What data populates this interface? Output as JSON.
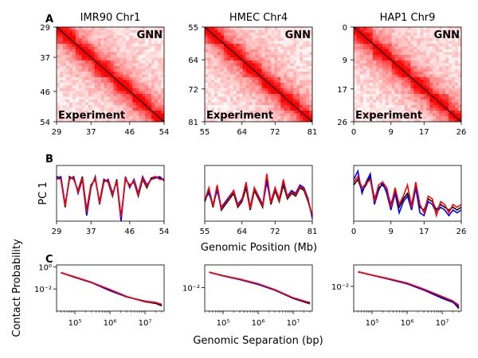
{
  "figure": {
    "panel_letters": [
      "A",
      "B",
      "C"
    ],
    "contact_ylabel": "Contact Probability",
    "contact_xlabel": "Genomic Separation (bp)"
  },
  "chart_data": [
    {
      "type": "heatmap",
      "panel": "A",
      "title": "IMR90 Chr1",
      "upper_label": "GNN",
      "lower_label": "Experiment",
      "ticks": [
        "29",
        "37",
        "46",
        "54"
      ],
      "range": [
        29,
        54
      ],
      "color_scale": [
        "#ffffff",
        "#ff0000"
      ],
      "diagonal_color": "#000000"
    },
    {
      "type": "heatmap",
      "panel": "A",
      "title": "HMEC Chr4",
      "upper_label": "GNN",
      "lower_label": "Experiment",
      "ticks": [
        "55",
        "64",
        "72",
        "81"
      ],
      "range": [
        55,
        81
      ],
      "color_scale": [
        "#ffffff",
        "#ff0000"
      ],
      "diagonal_color": "#000000"
    },
    {
      "type": "heatmap",
      "panel": "A",
      "title": "HAP1 Chr9",
      "upper_label": "GNN",
      "lower_label": "Experiment",
      "ticks": [
        "0",
        "9",
        "17",
        "26"
      ],
      "range": [
        0,
        26
      ],
      "color_scale": [
        "#ffffff",
        "#ff0000"
      ],
      "diagonal_color": "#000000"
    },
    {
      "type": "line",
      "panel": "B",
      "ylabel": "PC 1",
      "xlabel": "Genomic Position (Mb)",
      "xticks": [
        "29",
        "37",
        "46",
        "54"
      ],
      "xlim": [
        29,
        54
      ],
      "ylim": [
        -1,
        1
      ],
      "series": [
        {
          "color": "#000000",
          "x": [
            29,
            30,
            31,
            32,
            33,
            34,
            35,
            36,
            37,
            38,
            39,
            40,
            41,
            42,
            43,
            44,
            45,
            46,
            47,
            48,
            49,
            50,
            51,
            52,
            53,
            54
          ],
          "values": [
            0.6,
            0.55,
            -0.5,
            0.6,
            0.5,
            0.1,
            0.6,
            -0.6,
            0.3,
            0.5,
            -0.3,
            0.5,
            0.4,
            -0.1,
            0.5,
            -0.9,
            0.5,
            0.3,
            0.4,
            -0.1,
            0.5,
            0.2,
            0.55,
            0.6,
            0.55,
            0.5
          ]
        },
        {
          "color": "#0000ff",
          "x": [
            29,
            30,
            31,
            32,
            33,
            34,
            35,
            36,
            37,
            38,
            39,
            40,
            41,
            42,
            43,
            44,
            45,
            46,
            47,
            48,
            49,
            50,
            51,
            52,
            53,
            54
          ],
          "values": [
            0.5,
            0.6,
            -0.4,
            0.5,
            0.6,
            0.0,
            0.5,
            -0.8,
            0.2,
            0.6,
            -0.4,
            0.4,
            0.5,
            0.0,
            0.4,
            -1.0,
            0.6,
            0.2,
            0.5,
            0.0,
            0.6,
            0.3,
            0.5,
            0.55,
            0.6,
            0.45
          ]
        },
        {
          "color": "#ff0000",
          "x": [
            29,
            30,
            31,
            32,
            33,
            34,
            35,
            36,
            37,
            38,
            39,
            40,
            41,
            42,
            43,
            44,
            45,
            46,
            47,
            48,
            49,
            50,
            51,
            52,
            53,
            54
          ],
          "values": [
            0.55,
            0.5,
            -0.45,
            0.55,
            0.55,
            0.05,
            0.55,
            -0.65,
            0.25,
            0.55,
            -0.35,
            0.45,
            0.45,
            -0.05,
            0.45,
            -0.85,
            0.55,
            0.25,
            0.45,
            -0.05,
            0.55,
            0.25,
            0.5,
            0.6,
            0.5,
            0.5
          ]
        }
      ]
    },
    {
      "type": "line",
      "panel": "B",
      "xticks": [
        "55",
        "64",
        "72",
        "81"
      ],
      "xlim": [
        55,
        81
      ],
      "ylim": [
        -1,
        1
      ],
      "series": [
        {
          "color": "#000000",
          "x": [
            55,
            56,
            57,
            58,
            59,
            60,
            61,
            62,
            63,
            64,
            65,
            66,
            67,
            68,
            69,
            70,
            71,
            72,
            73,
            74,
            75,
            76,
            77,
            78,
            79,
            80,
            81
          ],
          "values": [
            -0.3,
            0.1,
            -0.5,
            0.2,
            -0.6,
            -0.4,
            -0.2,
            0.0,
            -0.5,
            -0.3,
            0.2,
            -0.6,
            0.1,
            -0.2,
            -0.5,
            0.5,
            -0.4,
            0.1,
            -0.3,
            0.3,
            -0.2,
            0.0,
            -0.1,
            0.2,
            0.1,
            -0.3,
            -0.8
          ]
        },
        {
          "color": "#0000ff",
          "x": [
            55,
            56,
            57,
            58,
            59,
            60,
            61,
            62,
            63,
            64,
            65,
            66,
            67,
            68,
            69,
            70,
            71,
            72,
            73,
            74,
            75,
            76,
            77,
            78,
            79,
            80,
            81
          ],
          "values": [
            -0.2,
            0.0,
            -0.4,
            0.1,
            -0.5,
            -0.3,
            -0.1,
            0.1,
            -0.4,
            -0.2,
            0.3,
            -0.5,
            0.2,
            -0.1,
            -0.4,
            0.4,
            -0.3,
            0.2,
            -0.2,
            0.4,
            -0.1,
            0.1,
            0.0,
            0.3,
            0.2,
            -0.2,
            -0.9
          ]
        },
        {
          "color": "#ff0000",
          "x": [
            55,
            56,
            57,
            58,
            59,
            60,
            61,
            62,
            63,
            64,
            65,
            66,
            67,
            68,
            69,
            70,
            71,
            72,
            73,
            74,
            75,
            76,
            77,
            78,
            79,
            80,
            81
          ],
          "values": [
            -0.25,
            0.2,
            -0.45,
            0.3,
            -0.55,
            -0.35,
            -0.15,
            0.1,
            -0.45,
            -0.25,
            0.4,
            -0.55,
            0.2,
            -0.15,
            -0.45,
            0.7,
            -0.35,
            0.2,
            -0.25,
            0.5,
            -0.15,
            0.05,
            -0.05,
            0.25,
            0.15,
            -0.25,
            -0.8
          ]
        }
      ]
    },
    {
      "type": "line",
      "panel": "B",
      "xticks": [
        "0",
        "9",
        "17",
        "26"
      ],
      "xlim": [
        0,
        26
      ],
      "ylim": [
        -1,
        1
      ],
      "series": [
        {
          "color": "#000000",
          "x": [
            0,
            1,
            2,
            3,
            4,
            5,
            6,
            7,
            8,
            9,
            10,
            11,
            12,
            13,
            14,
            15,
            16,
            17,
            18,
            19,
            20,
            21,
            22,
            23,
            24,
            25,
            26
          ],
          "values": [
            0.3,
            0.5,
            0.1,
            0.3,
            0.6,
            -0.2,
            0.2,
            0.3,
            0.1,
            -0.4,
            0.1,
            -0.5,
            -0.2,
            0.0,
            -0.4,
            0.3,
            -0.5,
            -0.6,
            -0.2,
            -0.3,
            -0.6,
            -0.4,
            -0.5,
            -0.6,
            -0.5,
            -0.6,
            -0.5
          ]
        },
        {
          "color": "#0000ff",
          "x": [
            0,
            1,
            2,
            3,
            4,
            5,
            6,
            7,
            8,
            9,
            10,
            11,
            12,
            13,
            14,
            15,
            16,
            17,
            18,
            19,
            20,
            21,
            22,
            23,
            24,
            25,
            26
          ],
          "values": [
            0.5,
            0.8,
            0.0,
            0.4,
            0.7,
            -0.4,
            0.1,
            0.4,
            0.0,
            -0.6,
            0.0,
            -0.7,
            -0.3,
            -0.1,
            -0.6,
            0.2,
            -0.7,
            -0.8,
            -0.3,
            -0.4,
            -0.7,
            -0.5,
            -0.6,
            -0.8,
            -0.6,
            -0.7,
            -0.6
          ]
        },
        {
          "color": "#ff0000",
          "x": [
            0,
            1,
            2,
            3,
            4,
            5,
            6,
            7,
            8,
            9,
            10,
            11,
            12,
            13,
            14,
            15,
            16,
            17,
            18,
            19,
            20,
            21,
            22,
            23,
            24,
            25,
            26
          ],
          "values": [
            0.4,
            0.6,
            0.2,
            0.35,
            0.5,
            -0.3,
            0.3,
            0.4,
            0.2,
            -0.5,
            0.2,
            -0.4,
            -0.1,
            0.3,
            -0.5,
            0.4,
            -0.4,
            -0.7,
            -0.1,
            -0.2,
            -0.8,
            -0.3,
            -0.4,
            -0.7,
            -0.4,
            -0.5,
            -0.4
          ]
        }
      ]
    },
    {
      "type": "line",
      "panel": "C",
      "xscale": "log",
      "yscale": "log",
      "xlim": [
        30000,
        35000000
      ],
      "ylim": [
        0.0001,
        1.5
      ],
      "xticks": [
        "10^5",
        "10^6",
        "10^7"
      ],
      "yticks": [
        "10^0",
        "10^-2"
      ],
      "series": [
        {
          "color": "#000000",
          "x": [
            40000,
            100000,
            300000,
            1000000,
            3000000,
            10000000,
            20000000,
            30000000
          ],
          "values": [
            0.3,
            0.12,
            0.04,
            0.008,
            0.002,
            0.0007,
            0.0005,
            0.0003
          ]
        },
        {
          "color": "#0000ff",
          "x": [
            40000,
            100000,
            300000,
            1000000,
            3000000,
            10000000,
            20000000,
            30000000
          ],
          "values": [
            0.3,
            0.11,
            0.037,
            0.007,
            0.0019,
            0.0008,
            0.0006,
            0.0004
          ]
        },
        {
          "color": "#ff0000",
          "x": [
            40000,
            100000,
            300000,
            1000000,
            3000000,
            10000000,
            20000000,
            30000000
          ],
          "values": [
            0.3,
            0.12,
            0.04,
            0.009,
            0.0021,
            0.0007,
            0.0006,
            0.0004
          ]
        }
      ]
    },
    {
      "type": "line",
      "panel": "C",
      "xscale": "log",
      "yscale": "log",
      "xlim": [
        30000,
        35000000
      ],
      "ylim": [
        0.0003,
        0.3
      ],
      "xticks": [
        "10^5",
        "10^6",
        "10^7"
      ],
      "yticks": [
        "10^-2"
      ],
      "series": [
        {
          "color": "#000000",
          "x": [
            40000,
            100000,
            300000,
            1000000,
            3000000,
            10000000,
            20000000,
            30000000
          ],
          "values": [
            0.1,
            0.06,
            0.035,
            0.017,
            0.007,
            0.002,
            0.0012,
            0.0009
          ]
        },
        {
          "color": "#0000ff",
          "x": [
            40000,
            100000,
            300000,
            1000000,
            3000000,
            10000000,
            20000000,
            30000000
          ],
          "values": [
            0.1,
            0.058,
            0.033,
            0.016,
            0.0068,
            0.0021,
            0.0013,
            0.0011
          ]
        },
        {
          "color": "#ff0000",
          "x": [
            40000,
            100000,
            300000,
            1000000,
            3000000,
            10000000,
            20000000,
            30000000
          ],
          "values": [
            0.1,
            0.06,
            0.036,
            0.018,
            0.0075,
            0.0022,
            0.0014,
            0.001
          ]
        }
      ]
    },
    {
      "type": "line",
      "panel": "C",
      "xscale": "log",
      "yscale": "log",
      "xlim": [
        30000,
        35000000
      ],
      "ylim": [
        0.0002,
        0.3
      ],
      "xticks": [
        "10^5",
        "10^6",
        "10^7"
      ],
      "yticks": [
        "10^-2"
      ],
      "series": [
        {
          "color": "#000000",
          "x": [
            40000,
            100000,
            300000,
            1000000,
            3000000,
            10000000,
            20000000,
            30000000
          ],
          "values": [
            0.1,
            0.06,
            0.033,
            0.016,
            0.006,
            0.0018,
            0.0009,
            0.0003
          ]
        },
        {
          "color": "#0000ff",
          "x": [
            40000,
            100000,
            300000,
            1000000,
            3000000,
            10000000,
            20000000,
            30000000
          ],
          "values": [
            0.1,
            0.058,
            0.031,
            0.015,
            0.0055,
            0.0015,
            0.0008,
            0.0004
          ]
        },
        {
          "color": "#ff0000",
          "x": [
            40000,
            100000,
            300000,
            1000000,
            3000000,
            10000000,
            20000000,
            30000000
          ],
          "values": [
            0.1,
            0.06,
            0.034,
            0.017,
            0.0065,
            0.002,
            0.001,
            0.0005
          ]
        }
      ]
    }
  ]
}
